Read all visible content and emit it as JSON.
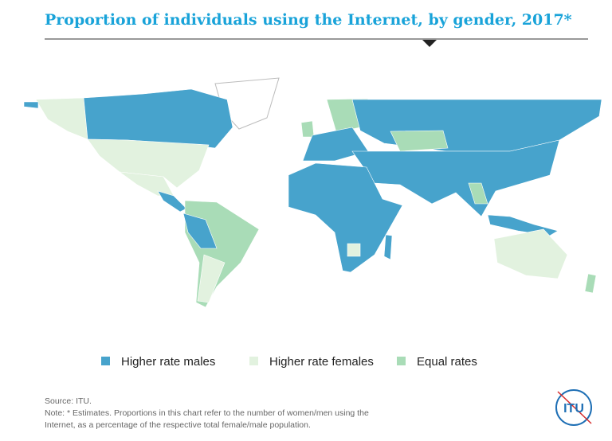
{
  "header": {
    "title": "Proportion of individuals using the Internet, by gender, 2017*"
  },
  "legend": [
    {
      "label": "Higher rate males",
      "color": "#47a3cc"
    },
    {
      "label": "Higher rate females",
      "color": "#e2f2df"
    },
    {
      "label": "Equal rates",
      "color": "#a9dcb7"
    }
  ],
  "footer": {
    "source": "Source: ITU.",
    "note_line1": "Note: * Estimates. Proportions in this chart refer to the number of women/men using the",
    "note_line2": "Internet, as a percentage of the respective total female/male population.",
    "logo": "ITU"
  }
}
